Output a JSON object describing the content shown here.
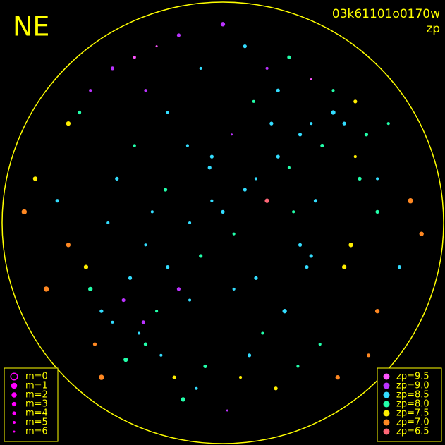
{
  "chart_data": {
    "type": "scatter",
    "title": "NE",
    "subtitle": "03k61101o0170w",
    "color_label": "zp",
    "xlim": [
      -1,
      1
    ],
    "ylim": [
      -1,
      1
    ],
    "x": [
      -0.55,
      -0.5,
      -0.45,
      -0.6,
      -0.38,
      -0.42,
      -0.3,
      -0.25,
      -0.35,
      -0.2,
      -0.15,
      -0.1,
      -0.05,
      0.0,
      0.05,
      0.1,
      0.15,
      0.2,
      0.25,
      0.3,
      0.35,
      0.4,
      0.45,
      0.5,
      0.55,
      0.6,
      0.65,
      0.7,
      -0.7,
      -0.75,
      -0.8,
      -0.65,
      -0.85,
      -0.6,
      -0.5,
      -0.4,
      -0.3,
      -0.2,
      -0.1,
      0.0,
      0.1,
      0.2,
      0.3,
      0.4,
      0.5,
      0.6,
      0.7,
      0.8,
      0.85,
      0.75,
      -0.35,
      -0.28,
      -0.22,
      -0.18,
      -0.12,
      -0.08,
      0.02,
      0.08,
      0.12,
      0.18,
      0.24,
      0.28,
      0.34,
      0.38,
      0.44,
      0.52,
      -0.48,
      -0.52,
      -0.58,
      -0.44,
      -0.36,
      -0.32,
      -0.26,
      -0.16,
      -0.06,
      0.04,
      0.14,
      0.22,
      0.32,
      0.42,
      0.58,
      0.66,
      -0.9,
      0.9,
      -0.15,
      0.15,
      -0.4,
      0.4,
      -0.7,
      0.7,
      -0.25,
      0.25,
      0.05,
      -0.05,
      0.55,
      -0.55,
      0.35,
      -0.35,
      0.62,
      -0.62
    ],
    "y": [
      -0.4,
      -0.45,
      -0.35,
      -0.3,
      -0.5,
      -0.25,
      -0.4,
      -0.2,
      -0.1,
      -0.3,
      0.0,
      -0.15,
      0.1,
      0.05,
      -0.05,
      0.15,
      0.2,
      0.1,
      0.3,
      0.25,
      0.4,
      0.45,
      0.35,
      0.5,
      0.45,
      0.3,
      0.4,
      0.2,
      -0.1,
      0.1,
      -0.3,
      0.5,
      0.2,
      0.6,
      0.7,
      0.75,
      0.8,
      0.85,
      0.7,
      0.9,
      0.8,
      0.7,
      0.75,
      0.65,
      0.6,
      0.55,
      -0.4,
      -0.2,
      0.1,
      0.45,
      -0.55,
      -0.6,
      -0.7,
      -0.8,
      -0.75,
      -0.65,
      -0.85,
      -0.7,
      -0.6,
      -0.5,
      -0.75,
      -0.4,
      -0.65,
      -0.2,
      -0.55,
      -0.7,
      0.2,
      0.0,
      -0.55,
      -0.62,
      -0.45,
      0.05,
      0.15,
      0.35,
      0.25,
      0.4,
      0.55,
      0.45,
      0.05,
      0.1,
      -0.1,
      -0.6,
      0.05,
      -0.05,
      -0.35,
      -0.25,
      0.35,
      -0.15,
      0.45,
      0.05,
      0.5,
      0.6,
      -0.3,
      0.3,
      -0.2,
      -0.7,
      -0.1,
      0.6,
      0.2,
      -0.2
    ],
    "m": [
      4,
      5,
      4,
      3,
      5,
      4,
      5,
      4,
      5,
      4,
      5,
      4,
      5,
      4,
      5,
      4,
      5,
      3,
      4,
      5,
      4,
      5,
      4,
      3,
      4,
      5,
      4,
      5,
      3,
      4,
      2,
      4,
      3,
      5,
      4,
      5,
      6,
      4,
      5,
      3,
      4,
      5,
      4,
      6,
      5,
      4,
      3,
      4,
      2,
      5,
      4,
      5,
      4,
      3,
      5,
      4,
      6,
      5,
      4,
      5,
      4,
      3,
      5,
      4,
      5,
      3,
      4,
      5,
      4,
      3,
      4,
      5,
      4,
      5,
      4,
      6,
      5,
      4,
      5,
      4,
      3,
      4,
      2,
      3,
      5,
      4,
      5,
      4,
      3,
      4,
      5,
      4,
      5,
      4,
      3,
      2,
      4,
      5,
      4,
      3
    ],
    "zp": [
      8.5,
      8.5,
      9.0,
      8.0,
      8.5,
      8.5,
      8.0,
      8.5,
      8.5,
      9.0,
      8.5,
      8.0,
      8.5,
      8.5,
      8.0,
      8.5,
      8.5,
      6.5,
      8.5,
      8.0,
      8.5,
      8.5,
      8.0,
      8.5,
      8.5,
      7.5,
      8.0,
      8.5,
      7.0,
      8.5,
      7.0,
      8.0,
      7.5,
      9.0,
      9.0,
      9.5,
      9.5,
      9.0,
      8.5,
      9.0,
      8.5,
      9.0,
      8.0,
      9.5,
      8.0,
      7.5,
      7.0,
      8.5,
      7.0,
      8.0,
      8.0,
      8.5,
      7.5,
      8.0,
      8.5,
      8.0,
      9.0,
      7.5,
      8.5,
      8.0,
      7.5,
      8.5,
      8.0,
      8.5,
      8.0,
      7.0,
      8.5,
      8.5,
      7.0,
      8.0,
      9.0,
      8.5,
      8.0,
      8.5,
      8.5,
      9.0,
      8.0,
      8.5,
      8.0,
      8.5,
      7.5,
      7.0,
      7.0,
      7.0,
      8.5,
      8.5,
      8.0,
      8.5,
      7.5,
      8.0,
      8.5,
      8.5,
      8.5,
      8.5,
      7.5,
      7.0,
      8.5,
      9.0,
      8.0,
      7.5
    ],
    "size_legend": [
      {
        "value": 0,
        "label": "m=0"
      },
      {
        "value": 1,
        "label": "m=1"
      },
      {
        "value": 2,
        "label": "m=2"
      },
      {
        "value": 3,
        "label": "m=3"
      },
      {
        "value": 4,
        "label": "m=4"
      },
      {
        "value": 5,
        "label": "m=5"
      },
      {
        "value": 6,
        "label": "m=6"
      }
    ],
    "size_legend_color": "#ff00ff",
    "color_legend": [
      {
        "value": 9.5,
        "label": "zp=9.5",
        "color": "#ff55ff"
      },
      {
        "value": 9.0,
        "label": "zp=9.0",
        "color": "#bb33ff"
      },
      {
        "value": 8.5,
        "label": "zp=8.5",
        "color": "#33ddff"
      },
      {
        "value": 8.0,
        "label": "zp=8.0",
        "color": "#22ffaa"
      },
      {
        "value": 7.5,
        "label": "zp=7.5",
        "color": "#ffee00"
      },
      {
        "value": 7.0,
        "label": "zp=7.0",
        "color": "#ff8822"
      },
      {
        "value": 6.5,
        "label": "zp=6.5",
        "color": "#ff6677"
      }
    ]
  }
}
